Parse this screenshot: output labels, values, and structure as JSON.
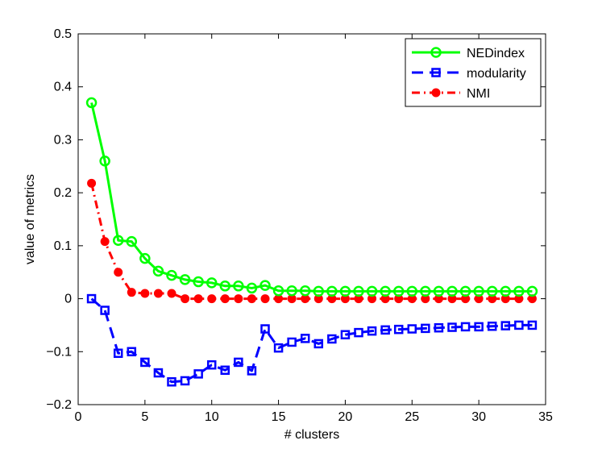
{
  "chart_data": {
    "type": "line",
    "title": "",
    "xlabel": "# clusters",
    "ylabel": "value of metrics",
    "xlim": [
      0,
      35
    ],
    "ylim": [
      -0.2,
      0.5
    ],
    "xticks": [
      0,
      5,
      10,
      15,
      20,
      25,
      30,
      35
    ],
    "yticks": [
      -0.2,
      -0.1,
      0,
      0.1,
      0.2,
      0.3,
      0.4,
      0.5
    ],
    "xtick_labels": [
      "0",
      "5",
      "10",
      "15",
      "20",
      "25",
      "30",
      "35"
    ],
    "ytick_labels": [
      "−0.2",
      "−0.1",
      "0",
      "0.1",
      "0.2",
      "0.3",
      "0.4",
      "0.5"
    ],
    "grid": false,
    "legend_position": "top-right",
    "series": [
      {
        "name": "NEDindex",
        "color": "#00ff00",
        "line_style": "solid",
        "marker": "circle-open",
        "x": [
          1,
          2,
          3,
          4,
          5,
          6,
          7,
          8,
          9,
          10,
          11,
          12,
          13,
          14,
          15,
          16,
          17,
          18,
          19,
          20,
          21,
          22,
          23,
          24,
          25,
          26,
          27,
          28,
          29,
          30,
          31,
          32,
          33,
          34
        ],
        "values": [
          0.37,
          0.26,
          0.11,
          0.108,
          0.076,
          0.052,
          0.044,
          0.036,
          0.032,
          0.03,
          0.024,
          0.024,
          0.02,
          0.025,
          0.015,
          0.015,
          0.015,
          0.014,
          0.014,
          0.014,
          0.014,
          0.014,
          0.014,
          0.014,
          0.014,
          0.014,
          0.014,
          0.014,
          0.014,
          0.014,
          0.014,
          0.014,
          0.014,
          0.014
        ]
      },
      {
        "name": "modularity",
        "color": "#0000ff",
        "line_style": "dashed",
        "marker": "square-open",
        "x": [
          1,
          2,
          3,
          4,
          5,
          6,
          7,
          8,
          9,
          10,
          11,
          12,
          13,
          14,
          15,
          16,
          17,
          18,
          19,
          20,
          21,
          22,
          23,
          24,
          25,
          26,
          27,
          28,
          29,
          30,
          31,
          32,
          33,
          34
        ],
        "values": [
          0.0,
          -0.022,
          -0.103,
          -0.1,
          -0.12,
          -0.14,
          -0.157,
          -0.155,
          -0.142,
          -0.125,
          -0.135,
          -0.12,
          -0.136,
          -0.057,
          -0.093,
          -0.082,
          -0.075,
          -0.085,
          -0.076,
          -0.068,
          -0.064,
          -0.061,
          -0.059,
          -0.058,
          -0.057,
          -0.056,
          -0.055,
          -0.054,
          -0.053,
          -0.053,
          -0.052,
          -0.051,
          -0.05,
          -0.05
        ]
      },
      {
        "name": "NMI",
        "color": "#ff0000",
        "line_style": "dashdot",
        "marker": "circle-filled",
        "x": [
          1,
          2,
          3,
          4,
          5,
          6,
          7,
          8,
          9,
          10,
          11,
          12,
          13,
          14,
          15,
          16,
          17,
          18,
          19,
          20,
          21,
          22,
          23,
          24,
          25,
          26,
          27,
          28,
          29,
          30,
          31,
          32,
          33,
          34
        ],
        "values": [
          0.218,
          0.108,
          0.05,
          0.012,
          0.01,
          0.01,
          0.01,
          0.0,
          0.0,
          0.0,
          0.0,
          0.0,
          0.0,
          0.0,
          0.0,
          0.0,
          0.0,
          0.0,
          0.0,
          0.0,
          0.0,
          0.0,
          0.0,
          0.0,
          0.0,
          0.0,
          0.0,
          0.0,
          0.0,
          0.0,
          0.0,
          0.0,
          0.0,
          0.0
        ]
      }
    ]
  }
}
